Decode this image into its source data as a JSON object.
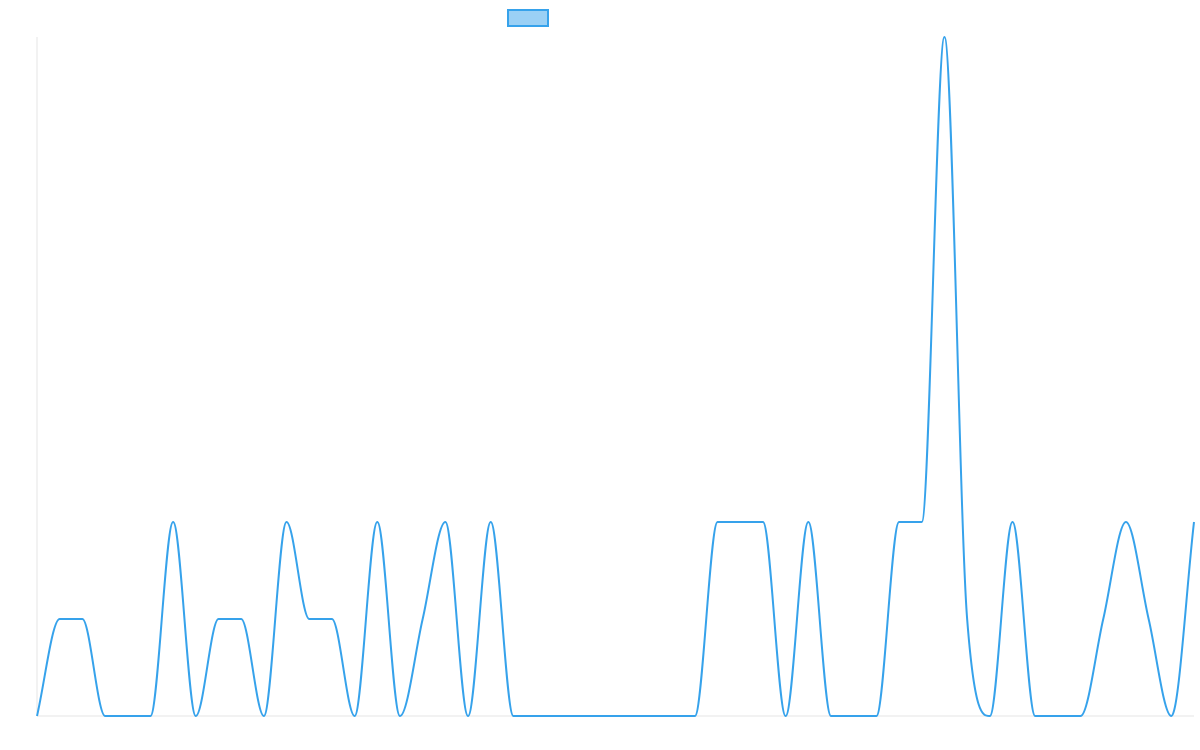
{
  "chart_data": {
    "type": "line",
    "title": "",
    "xlabel": "",
    "ylabel": "",
    "ylim": [
      0,
      7
    ],
    "grid": false,
    "legend": {
      "placement": "top-center",
      "entries": [
        {
          "name": "",
          "color": "#36a2eb"
        }
      ]
    },
    "series": [
      {
        "name": "",
        "color": "#36a2eb",
        "fill": "#9ad0f5",
        "values": [
          0,
          1,
          1,
          0,
          0,
          0,
          2,
          0,
          1,
          1,
          0,
          2,
          1,
          1,
          0,
          2,
          0,
          1,
          2,
          0,
          2,
          0,
          0,
          0,
          0,
          0,
          0,
          0,
          0,
          0,
          2,
          2,
          2,
          0,
          2,
          0,
          0,
          0,
          2,
          2,
          7,
          1,
          0,
          2,
          0,
          0,
          0,
          1,
          2,
          1,
          0,
          2
        ]
      }
    ]
  }
}
